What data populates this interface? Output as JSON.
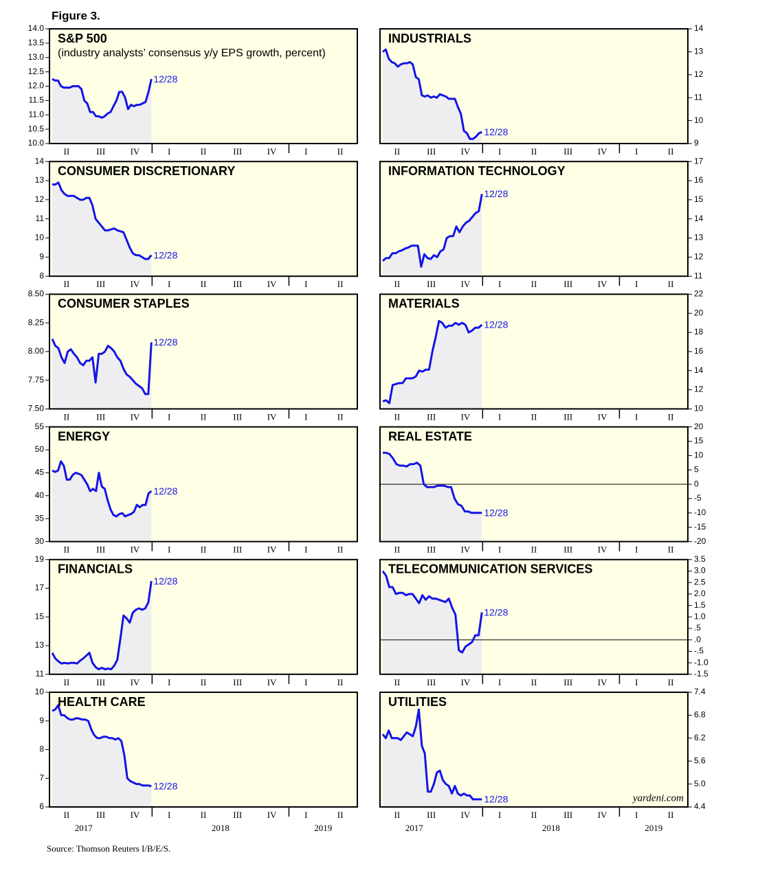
{
  "figure_title": "Figure 3.",
  "source": "Source: Thomson Reuters I/B/E/S.",
  "watermark": "yardeni.com",
  "quarters": [
    "II",
    "III",
    "IV",
    "I",
    "II",
    "III",
    "IV",
    "I",
    "II"
  ],
  "years": [
    "2017",
    "2018",
    "2019"
  ],
  "chart_data": [
    {
      "type": "line",
      "title": "S&P 500",
      "subtitle": "(industry analysts’ consensus y/y EPS growth, percent)",
      "annotation": "12/28",
      "axis_side": "left",
      "color": "#1414e6",
      "values": [
        12.25,
        12.2,
        12.2,
        12.0,
        11.95,
        11.95,
        11.95,
        12.0,
        12.0,
        12.0,
        11.9,
        11.5,
        11.4,
        11.1,
        11.1,
        10.95,
        10.95,
        10.9,
        10.95,
        11.05,
        11.1,
        11.3,
        11.5,
        11.8,
        11.8,
        11.6,
        11.2,
        11.35,
        11.3,
        11.35,
        11.35,
        11.4,
        11.45,
        11.8,
        12.25
      ],
      "ylim": [
        10,
        14
      ],
      "yticks": [
        {
          "value": 10,
          "label": "10.0"
        },
        10.5,
        {
          "value": 11,
          "label": "11.0"
        },
        11.5,
        {
          "value": 12,
          "label": "12.0"
        },
        12.5,
        {
          "value": 13,
          "label": "13.0"
        },
        13.5,
        {
          "value": 14,
          "label": "14.0"
        }
      ]
    },
    {
      "type": "line",
      "title": "INDUSTRIALS",
      "annotation": "12/28",
      "axis_side": "right",
      "color": "#1414e6",
      "values": [
        13.0,
        13.1,
        12.7,
        12.55,
        12.5,
        12.35,
        12.45,
        12.5,
        12.5,
        12.55,
        12.45,
        11.9,
        11.8,
        11.1,
        11.05,
        11.1,
        11.0,
        11.05,
        11.0,
        11.15,
        11.1,
        11.05,
        10.95,
        10.95,
        10.95,
        10.6,
        10.3,
        9.55,
        9.45,
        9.2,
        9.2,
        9.3,
        9.45,
        9.5
      ],
      "ylim": [
        9,
        14
      ],
      "yticks": [
        9,
        10,
        11,
        12,
        13,
        14
      ]
    },
    {
      "type": "line",
      "title": "CONSUMER DISCRETIONARY",
      "annotation": "12/28",
      "axis_side": "left",
      "color": "#1414e6",
      "values": [
        12.8,
        12.8,
        12.9,
        12.5,
        12.3,
        12.2,
        12.2,
        12.2,
        12.1,
        12.0,
        12.0,
        12.1,
        12.1,
        11.7,
        11.0,
        10.8,
        10.6,
        10.4,
        10.4,
        10.45,
        10.5,
        10.4,
        10.35,
        10.3,
        9.9,
        9.5,
        9.2,
        9.1,
        9.1,
        9.0,
        8.9,
        8.9,
        9.1
      ],
      "ylim": [
        8,
        14
      ],
      "yticks": [
        8,
        9,
        10,
        11,
        12,
        13,
        14
      ]
    },
    {
      "type": "line",
      "title": "INFORMATION TECHNOLOGY",
      "annotation": "12/28",
      "axis_side": "right",
      "color": "#1414e6",
      "values": [
        11.8,
        11.95,
        11.95,
        12.2,
        12.2,
        12.3,
        12.35,
        12.45,
        12.5,
        12.6,
        12.6,
        12.6,
        11.5,
        12.15,
        11.95,
        11.9,
        12.1,
        12.0,
        12.3,
        12.4,
        13.0,
        13.1,
        13.1,
        13.6,
        13.3,
        13.6,
        13.8,
        13.9,
        14.1,
        14.3,
        14.4,
        15.3
      ],
      "ylim": [
        11,
        17
      ],
      "yticks": [
        11,
        12,
        13,
        14,
        15,
        16,
        17
      ]
    },
    {
      "type": "line",
      "title": "CONSUMER STAPLES",
      "annotation": "12/28",
      "axis_side": "left",
      "color": "#1414e6",
      "values": [
        8.11,
        8.05,
        8.03,
        7.95,
        7.9,
        8.0,
        8.02,
        7.98,
        7.95,
        7.9,
        7.88,
        7.92,
        7.92,
        7.95,
        7.73,
        7.98,
        7.98,
        8.0,
        8.05,
        8.03,
        8.0,
        7.95,
        7.92,
        7.85,
        7.8,
        7.78,
        7.75,
        7.72,
        7.7,
        7.68,
        7.63,
        7.63,
        8.08
      ],
      "ylim": [
        7.5,
        8.5
      ],
      "yticks": [
        {
          "value": 7.5,
          "label": "7.50"
        },
        7.75,
        {
          "value": 8,
          "label": "8.00"
        },
        8.25,
        {
          "value": 8.5,
          "label": "8.50"
        }
      ]
    },
    {
      "type": "line",
      "title": "MATERIALS",
      "annotation": "12/28",
      "axis_side": "right",
      "color": "#1414e6",
      "values": [
        10.8,
        10.9,
        10.6,
        12.5,
        12.6,
        12.7,
        12.7,
        13.2,
        13.2,
        13.2,
        13.4,
        14.0,
        13.9,
        14.1,
        14.1,
        16.0,
        17.5,
        19.2,
        19.0,
        18.5,
        18.7,
        18.7,
        19.0,
        18.8,
        19.0,
        18.8,
        18.0,
        18.2,
        18.5,
        18.5,
        18.8
      ],
      "ylim": [
        10,
        22
      ],
      "yticks": [
        10,
        12,
        14,
        16,
        18,
        20,
        22
      ]
    },
    {
      "type": "line",
      "title": "ENERGY",
      "annotation": "12/28",
      "axis_side": "left",
      "color": "#1414e6",
      "values": [
        45.5,
        45.2,
        45.5,
        47.5,
        46.5,
        43.5,
        43.5,
        44.5,
        45,
        44.8,
        44.5,
        43.5,
        42.5,
        41,
        41.5,
        41,
        45,
        42,
        41.5,
        39,
        37,
        35.8,
        35.5,
        36,
        36.2,
        35.5,
        35.8,
        36,
        36.5,
        38,
        37.5,
        38,
        38,
        40.5,
        41
      ],
      "ylim": [
        30,
        55
      ],
      "yticks": [
        30,
        35,
        40,
        45,
        50,
        55
      ]
    },
    {
      "type": "line",
      "title": "REAL ESTATE",
      "annotation": "12/28",
      "axis_side": "right",
      "color": "#1414e6",
      "zero_line": true,
      "values": [
        11,
        11,
        10.5,
        9,
        7,
        6.5,
        6.5,
        6.2,
        7,
        7,
        7.5,
        6.5,
        0,
        -1,
        -1,
        -1,
        -0.5,
        -0.5,
        -0.5,
        -1,
        -1,
        -5,
        -7,
        -7.5,
        -9.5,
        -9.5,
        -10,
        -10,
        -10,
        -10
      ],
      "ylim": [
        -20,
        20
      ],
      "yticks": [
        -20,
        -15,
        -10,
        -5,
        0,
        5,
        10,
        15,
        20
      ]
    },
    {
      "type": "line",
      "title": "FINANCIALS",
      "annotation": "12/28",
      "axis_side": "left",
      "color": "#1414e6",
      "values": [
        12.5,
        12.1,
        11.9,
        11.75,
        11.8,
        11.75,
        11.8,
        11.8,
        11.75,
        11.95,
        12.1,
        12.3,
        12.5,
        11.8,
        11.5,
        11.35,
        11.45,
        11.35,
        11.4,
        11.35,
        11.6,
        12.0,
        13.5,
        15.1,
        14.9,
        14.6,
        15.3,
        15.5,
        15.6,
        15.5,
        15.6,
        16.0,
        17.5
      ],
      "ylim": [
        11,
        19
      ],
      "yticks": [
        11,
        13,
        15,
        17,
        19
      ]
    },
    {
      "type": "line",
      "title": "TELECOMMUNICATION SERVICES",
      "annotation": "12/28",
      "axis_side": "right",
      "color": "#1414e6",
      "zero_line": true,
      "values": [
        3.0,
        2.8,
        2.3,
        2.3,
        2.0,
        2.05,
        2.05,
        1.95,
        2.0,
        2.0,
        1.8,
        1.6,
        1.95,
        1.75,
        1.9,
        1.8,
        1.8,
        1.75,
        1.7,
        1.65,
        1.8,
        1.4,
        1.1,
        -0.45,
        -0.55,
        -0.3,
        -0.2,
        -0.1,
        0.2,
        0.2,
        1.2
      ],
      "ylim": [
        -1.5,
        3.5
      ],
      "yticks": [
        -1.5,
        {
          "value": -1,
          "label": "-1.0"
        },
        {
          "value": -0.5,
          "label": "-.5"
        },
        {
          "value": 0,
          "label": ".0"
        },
        {
          "value": 0.5,
          "label": ".5"
        },
        {
          "value": 1,
          "label": "1.0"
        },
        1.5,
        {
          "value": 2,
          "label": "2.0"
        },
        2.5,
        {
          "value": 3,
          "label": "3.0"
        },
        3.5
      ]
    },
    {
      "type": "line",
      "title": "HEALTH CARE",
      "annotation": "12/28",
      "axis_side": "left",
      "color": "#1414e6",
      "values": [
        9.35,
        9.4,
        9.55,
        9.2,
        9.2,
        9.1,
        9.05,
        9.05,
        9.1,
        9.08,
        9.05,
        9.05,
        9.0,
        8.7,
        8.5,
        8.4,
        8.4,
        8.45,
        8.45,
        8.4,
        8.4,
        8.35,
        8.4,
        8.3,
        7.8,
        7.0,
        6.9,
        6.85,
        6.8,
        6.8,
        6.75,
        6.75,
        6.75,
        6.72
      ],
      "ylim": [
        6,
        10
      ],
      "yticks": [
        6,
        7,
        8,
        9,
        10
      ]
    },
    {
      "type": "line",
      "title": "UTILITIES",
      "annotation": "12/28",
      "axis_side": "right",
      "color": "#1414e6",
      "values": [
        6.3,
        6.2,
        6.4,
        6.2,
        6.2,
        6.2,
        6.15,
        6.25,
        6.35,
        6.3,
        6.25,
        6.5,
        6.95,
        6.0,
        5.8,
        4.8,
        4.8,
        5.0,
        5.3,
        5.35,
        5.1,
        5.0,
        4.95,
        4.75,
        4.95,
        4.75,
        4.7,
        4.75,
        4.7,
        4.7,
        4.6,
        4.6,
        4.6,
        4.6
      ],
      "ylim": [
        4.4,
        7.4
      ],
      "yticks": [
        4.4,
        {
          "value": 5,
          "label": "5.0"
        },
        5.6,
        6.2,
        6.8,
        7.4
      ]
    }
  ]
}
